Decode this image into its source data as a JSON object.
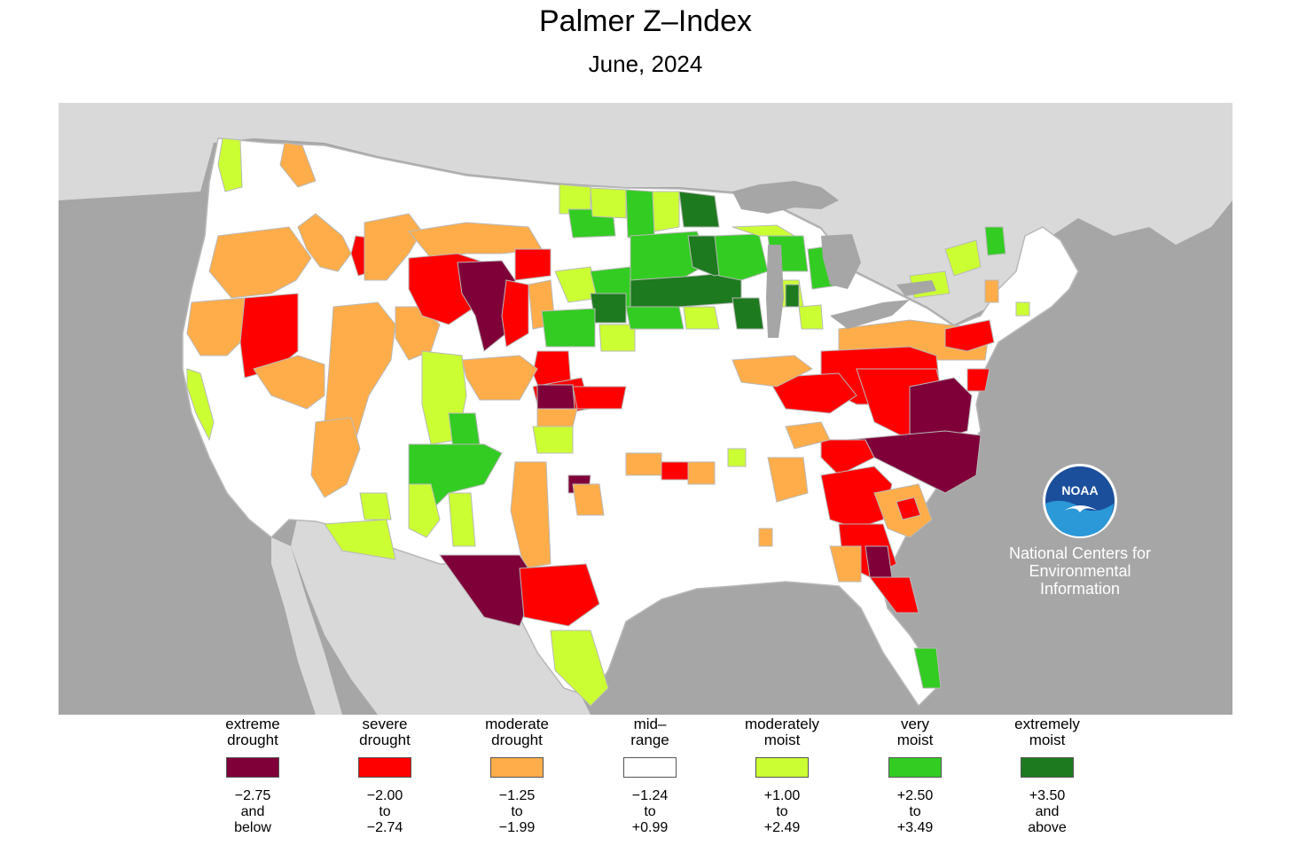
{
  "title": "Palmer Z–Index",
  "subtitle": "June, 2024",
  "colors": {
    "ocean": "#a6a6a6",
    "foreign_land": "#d9d9d9",
    "us_land": "#ffffff",
    "border": "#b8b8b8",
    "extreme_drought": "#7f0039",
    "severe_drought": "#ff0000",
    "moderate_drought": "#ffad4a",
    "mid_range": "#ffffff",
    "moderately_moist": "#ccff33",
    "very_moist": "#33cc22",
    "extremely_moist": "#1e7a1e"
  },
  "legend": [
    {
      "label_lines": [
        "extreme",
        "drought"
      ],
      "range_lines": [
        "−2.75",
        "and",
        "below"
      ],
      "color_key": "extreme_drought"
    },
    {
      "label_lines": [
        "severe",
        "drought"
      ],
      "range_lines": [
        "−2.00",
        "to",
        "−2.74"
      ],
      "color_key": "severe_drought"
    },
    {
      "label_lines": [
        "moderate",
        "drought"
      ],
      "range_lines": [
        "−1.25",
        "to",
        "−1.99"
      ],
      "color_key": "moderate_drought"
    },
    {
      "label_lines": [
        "mid–",
        "range"
      ],
      "range_lines": [
        "−1.24",
        "to",
        "+0.99"
      ],
      "color_key": "mid_range"
    },
    {
      "label_lines": [
        "moderately",
        "moist"
      ],
      "range_lines": [
        "+1.00",
        "to",
        "+2.49"
      ],
      "color_key": "moderately_moist"
    },
    {
      "label_lines": [
        "very",
        "moist"
      ],
      "range_lines": [
        "+2.50",
        "to",
        "+3.49"
      ],
      "color_key": "very_moist"
    },
    {
      "label_lines": [
        "extremely",
        "moist"
      ],
      "range_lines": [
        "+3.50",
        "and",
        "above"
      ],
      "color_key": "extremely_moist"
    }
  ],
  "logo": {
    "wordmark": "NOAA",
    "text_lines": [
      "National Centers for",
      "Environmental",
      "Information"
    ]
  }
}
